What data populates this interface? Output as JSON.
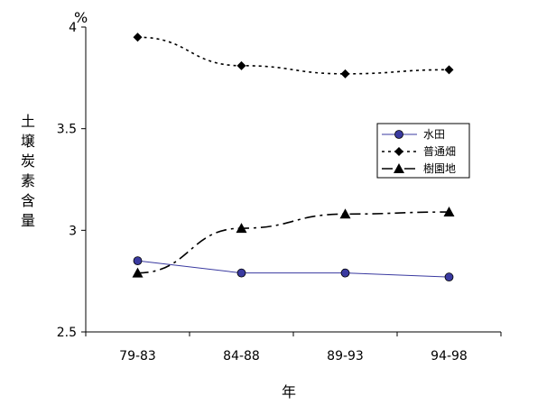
{
  "chart_data": {
    "type": "line",
    "title": "",
    "xlabel": "年",
    "ylabel": "土壌炭素含量",
    "yunit": "%",
    "categories": [
      "79-83",
      "84-88",
      "89-93",
      "94-98"
    ],
    "ylim": [
      2.5,
      4
    ],
    "yticks": [
      "2.5",
      "3",
      "3.5",
      "4"
    ],
    "grid": false,
    "legend": "right-middle",
    "series": [
      {
        "name": "水田",
        "values": [
          2.85,
          2.79,
          2.79,
          2.77
        ],
        "color": "#3a3aa0",
        "line": "solid",
        "marker": "circle"
      },
      {
        "name": "普通畑",
        "values": [
          3.95,
          3.81,
          3.77,
          3.79
        ],
        "color": "#000000",
        "line": "dotted",
        "marker": "diamond"
      },
      {
        "name": "樹園地",
        "values": [
          2.79,
          3.01,
          3.08,
          3.09
        ],
        "color": "#000000",
        "line": "dashdot",
        "marker": "triangle"
      }
    ]
  }
}
